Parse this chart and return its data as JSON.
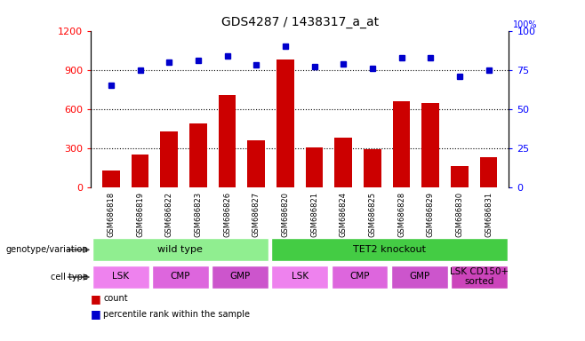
{
  "title": "GDS4287 / 1438317_a_at",
  "samples": [
    "GSM686818",
    "GSM686819",
    "GSM686822",
    "GSM686823",
    "GSM686826",
    "GSM686827",
    "GSM686820",
    "GSM686821",
    "GSM686824",
    "GSM686825",
    "GSM686828",
    "GSM686829",
    "GSM686830",
    "GSM686831"
  ],
  "counts": [
    130,
    255,
    430,
    490,
    710,
    360,
    980,
    310,
    380,
    295,
    660,
    650,
    165,
    230
  ],
  "percentiles": [
    65,
    75,
    80,
    81,
    84,
    78,
    90,
    77,
    79,
    76,
    83,
    83,
    71,
    75
  ],
  "ylim_left": [
    0,
    1200
  ],
  "ylim_right": [
    0,
    100
  ],
  "yticks_left": [
    0,
    300,
    600,
    900,
    1200
  ],
  "yticks_right": [
    0,
    25,
    50,
    75,
    100
  ],
  "bar_color": "#cc0000",
  "dot_color": "#0000cc",
  "sample_bg": "#c8c8c8",
  "genotype_groups": [
    {
      "label": "wild type",
      "start": 0,
      "end": 6,
      "color": "#90ee90"
    },
    {
      "label": "TET2 knockout",
      "start": 6,
      "end": 14,
      "color": "#44cc44"
    }
  ],
  "cell_type_groups": [
    {
      "label": "LSK",
      "start": 0,
      "end": 2,
      "color": "#ee82ee"
    },
    {
      "label": "CMP",
      "start": 2,
      "end": 4,
      "color": "#dd66dd"
    },
    {
      "label": "GMP",
      "start": 4,
      "end": 6,
      "color": "#cc55cc"
    },
    {
      "label": "LSK",
      "start": 6,
      "end": 8,
      "color": "#ee82ee"
    },
    {
      "label": "CMP",
      "start": 8,
      "end": 10,
      "color": "#dd66dd"
    },
    {
      "label": "GMP",
      "start": 10,
      "end": 12,
      "color": "#cc55cc"
    },
    {
      "label": "LSK CD150+\nsorted",
      "start": 12,
      "end": 14,
      "color": "#cc44bb"
    }
  ],
  "legend_count_color": "#cc0000",
  "legend_dot_color": "#0000cc"
}
